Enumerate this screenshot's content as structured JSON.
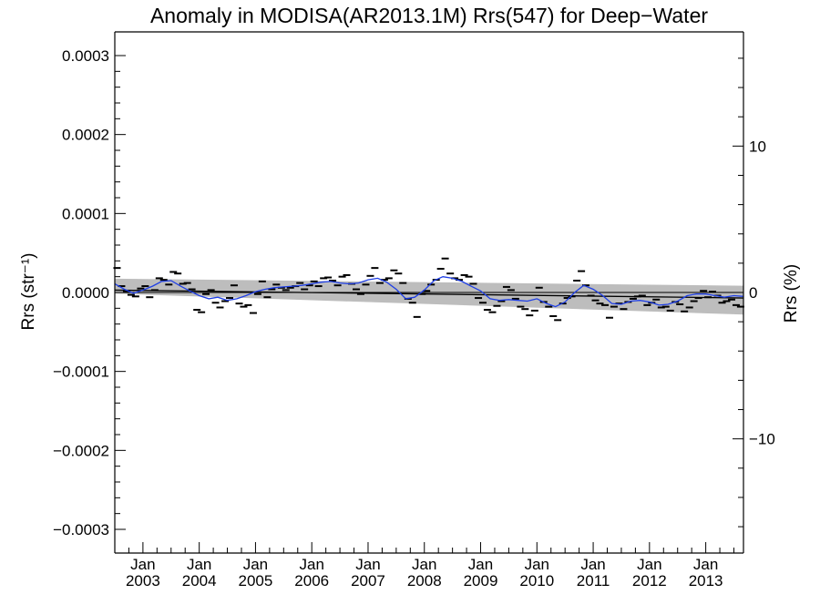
{
  "chart_data": {
    "type": "line",
    "title": "Anomaly in MODISA(AR2013.1M) Rrs(547) for Deep−Water",
    "ylabel": "Rrs (str⁻¹)",
    "y2label": "Rrs (%)",
    "xlabel": "",
    "xlim": [
      2002.5,
      2013.67
    ],
    "ylim": [
      -0.00033,
      0.00033
    ],
    "y2lim": [
      -17.8,
      17.8
    ],
    "yticks": [
      -0.0003,
      -0.0002,
      -0.0001,
      0.0,
      0.0001,
      0.0002,
      0.0003
    ],
    "ytick_labels": [
      "−0.0003",
      "−0.0002",
      "−0.0001",
      "0.0000",
      "0.0001",
      "0.0002",
      "0.0003"
    ],
    "y2ticks": [
      -10,
      0,
      10
    ],
    "y2tick_labels": [
      "−10",
      "0",
      "10"
    ],
    "xticks": [
      {
        "top": "Jan",
        "bottom": "2003",
        "x": 2003.0
      },
      {
        "top": "Jan",
        "bottom": "2004",
        "x": 2004.0
      },
      {
        "top": "Jan",
        "bottom": "2005",
        "x": 2005.0
      },
      {
        "top": "Jan",
        "bottom": "2006",
        "x": 2006.0
      },
      {
        "top": "Jan",
        "bottom": "2007",
        "x": 2007.0
      },
      {
        "top": "Jan",
        "bottom": "2008",
        "x": 2008.0
      },
      {
        "top": "Jan",
        "bottom": "2009",
        "x": 2009.0
      },
      {
        "top": "Jan",
        "bottom": "2010",
        "x": 2010.0
      },
      {
        "top": "Jan",
        "bottom": "2011",
        "x": 2011.0
      },
      {
        "top": "Jan",
        "bottom": "2012",
        "x": 2012.0
      },
      {
        "top": "Jan",
        "bottom": "2013",
        "x": 2013.0
      }
    ],
    "grid": false,
    "zero_line": 0.0,
    "confidence_band": {
      "x": [
        2002.5,
        2013.67
      ],
      "upper": [
        1.75e-05,
        8.5e-06
      ],
      "lower": [
        -1.5e-06,
        -2.8e-05
      ]
    },
    "series": [
      {
        "style": "markers",
        "color": "#000000",
        "x": [
          2002.54,
          2002.62,
          2002.71,
          2002.79,
          2002.87,
          2002.96,
          2003.04,
          2003.12,
          2003.21,
          2003.29,
          2003.37,
          2003.46,
          2003.54,
          2003.62,
          2003.71,
          2003.79,
          2003.87,
          2003.96,
          2004.04,
          2004.12,
          2004.21,
          2004.29,
          2004.37,
          2004.46,
          2004.54,
          2004.62,
          2004.71,
          2004.79,
          2004.87,
          2004.96,
          2005.04,
          2005.12,
          2005.21,
          2005.29,
          2005.37,
          2005.46,
          2005.54,
          2005.62,
          2005.71,
          2005.79,
          2005.87,
          2005.96,
          2006.04,
          2006.12,
          2006.21,
          2006.29,
          2006.37,
          2006.46,
          2006.54,
          2006.62,
          2006.71,
          2006.79,
          2006.87,
          2006.96,
          2007.04,
          2007.12,
          2007.21,
          2007.29,
          2007.37,
          2007.46,
          2007.54,
          2007.62,
          2007.71,
          2007.79,
          2007.87,
          2007.96,
          2008.04,
          2008.12,
          2008.21,
          2008.29,
          2008.37,
          2008.46,
          2008.54,
          2008.62,
          2008.71,
          2008.79,
          2008.87,
          2008.96,
          2009.04,
          2009.12,
          2009.21,
          2009.29,
          2009.37,
          2009.46,
          2009.54,
          2009.62,
          2009.71,
          2009.79,
          2009.87,
          2009.96,
          2010.04,
          2010.12,
          2010.21,
          2010.29,
          2010.37,
          2010.46,
          2010.54,
          2010.62,
          2010.71,
          2010.79,
          2010.87,
          2010.96,
          2011.04,
          2011.12,
          2011.21,
          2011.29,
          2011.37,
          2011.46,
          2011.54,
          2011.62,
          2011.71,
          2011.79,
          2011.87,
          2011.96,
          2012.04,
          2012.12,
          2012.21,
          2012.29,
          2012.37,
          2012.46,
          2012.54,
          2012.62,
          2012.71,
          2012.79,
          2012.87,
          2012.96,
          2013.04,
          2013.12,
          2013.21,
          2013.29,
          2013.37,
          2013.46,
          2013.54,
          2013.62
        ],
        "values": [
          3.1e-05,
          8e-06,
          1e-06,
          -3e-06,
          -5e-06,
          5e-06,
          8e-06,
          -6e-06,
          3e-06,
          1.8e-05,
          1.6e-05,
          1e-05,
          2.6e-05,
          2.4e-05,
          1.1e-05,
          1.2e-05,
          4e-06,
          -2.2e-05,
          -2.5e-05,
          -2e-06,
          3e-06,
          -1.3e-05,
          -1.9e-05,
          -1.1e-05,
          -7e-06,
          9e-06,
          -1.4e-05,
          -1.8e-05,
          -1.6e-05,
          -2.6e-05,
          -2e-06,
          1.4e-05,
          -6e-06,
          4e-06,
          1e-05,
          6e-06,
          3e-06,
          6e-06,
          8e-06,
          1.2e-05,
          4e-06,
          9e-06,
          1.4e-05,
          8e-06,
          1.8e-05,
          1.9e-05,
          1.5e-05,
          9e-06,
          2e-05,
          2.2e-05,
          1.1e-05,
          4e-06,
          -2e-06,
          1e-05,
          2.1e-05,
          3.1e-05,
          1.2e-05,
          1.6e-05,
          1.8e-05,
          2.8e-05,
          2.4e-05,
          1.2e-05,
          -8e-06,
          -1.3e-05,
          -3.1e-05,
          -2e-06,
          2e-06,
          1e-05,
          1.6e-05,
          3e-05,
          4.3e-05,
          2.4e-05,
          1.8e-05,
          1.6e-05,
          2.2e-05,
          2e-05,
          1.1e-05,
          -7e-06,
          -1.3e-05,
          -2.2e-05,
          -2.5e-05,
          -1.7e-05,
          -1.1e-05,
          7e-06,
          3e-06,
          -8e-06,
          -1.8e-05,
          -2.1e-05,
          -2.9e-05,
          -2.3e-05,
          6e-06,
          -1.2e-05,
          -1.8e-05,
          -3e-05,
          -3.5e-05,
          -1.4e-05,
          -7e-06,
          -5e-06,
          1.5e-05,
          2.7e-05,
          9e-06,
          -4e-06,
          -1e-05,
          -1.4e-05,
          -1.6e-05,
          -3.2e-05,
          -1.8e-05,
          -1.4e-05,
          -2.1e-05,
          -1.2e-05,
          -8e-06,
          -5e-06,
          -4e-06,
          -1.6e-05,
          -1.3e-05,
          -9e-06,
          -1.9e-05,
          -1.8e-05,
          -2.3e-05,
          -1.2e-05,
          -1.5e-05,
          -2.4e-05,
          -1.9e-05,
          -1.1e-05,
          -7e-06,
          2e-06,
          -6e-06,
          1e-06,
          -4e-06,
          -1.3e-05,
          -1.1e-05,
          -9e-06,
          -1.6e-05,
          -1.8e-05
        ]
      },
      {
        "style": "line",
        "color": "#1f3fe6",
        "x": [
          2002.5,
          2002.67,
          2002.83,
          2003.0,
          2003.17,
          2003.33,
          2003.5,
          2003.67,
          2003.83,
          2004.0,
          2004.17,
          2004.33,
          2004.5,
          2004.67,
          2004.83,
          2005.0,
          2005.17,
          2005.33,
          2005.5,
          2005.67,
          2005.83,
          2006.0,
          2006.17,
          2006.33,
          2006.5,
          2006.67,
          2006.83,
          2007.0,
          2007.17,
          2007.33,
          2007.5,
          2007.67,
          2007.83,
          2008.0,
          2008.17,
          2008.33,
          2008.5,
          2008.67,
          2008.83,
          2009.0,
          2009.17,
          2009.33,
          2009.5,
          2009.67,
          2009.83,
          2010.0,
          2010.17,
          2010.33,
          2010.5,
          2010.67,
          2010.83,
          2011.0,
          2011.17,
          2011.33,
          2011.5,
          2011.67,
          2011.83,
          2012.0,
          2012.17,
          2012.33,
          2012.5,
          2012.67,
          2012.83,
          2013.0,
          2013.17,
          2013.33,
          2013.5,
          2013.67
        ],
        "values": [
          1.1e-05,
          4e-06,
          -1e-06,
          3e-06,
          8e-06,
          1.4e-05,
          1.5e-05,
          8e-06,
          2e-06,
          -4e-06,
          -8e-06,
          -6e-06,
          -1e-05,
          -8e-06,
          -4e-06,
          1e-06,
          4e-06,
          6e-06,
          7e-06,
          8e-06,
          9e-06,
          1.1e-05,
          1.3e-05,
          1.4e-05,
          1.2e-05,
          1.1e-05,
          1.2e-05,
          1.6e-05,
          1.8e-05,
          1.3e-05,
          4e-06,
          -8e-06,
          -6e-06,
          3e-06,
          1.5e-05,
          2e-05,
          1.8e-05,
          1.4e-05,
          8e-06,
          2e-06,
          -8e-06,
          -1e-05,
          -9e-06,
          -1e-05,
          -1.1e-05,
          -8e-06,
          -1.4e-05,
          -1.8e-05,
          -1.2e-05,
          0.0,
          9e-06,
          4e-06,
          -4e-06,
          -1.4e-05,
          -1.5e-05,
          -1.1e-05,
          -1e-05,
          -1.2e-05,
          -1.6e-05,
          -1.5e-05,
          -1.1e-05,
          -4e-06,
          -2e-06,
          -2e-06,
          -4e-06,
          -6e-06,
          -4e-06,
          -5e-06
        ]
      },
      {
        "style": "trend",
        "color": "#000000",
        "x": [
          2002.5,
          2013.67
        ],
        "values": [
          3e-06,
          -7e-06
        ]
      }
    ]
  }
}
